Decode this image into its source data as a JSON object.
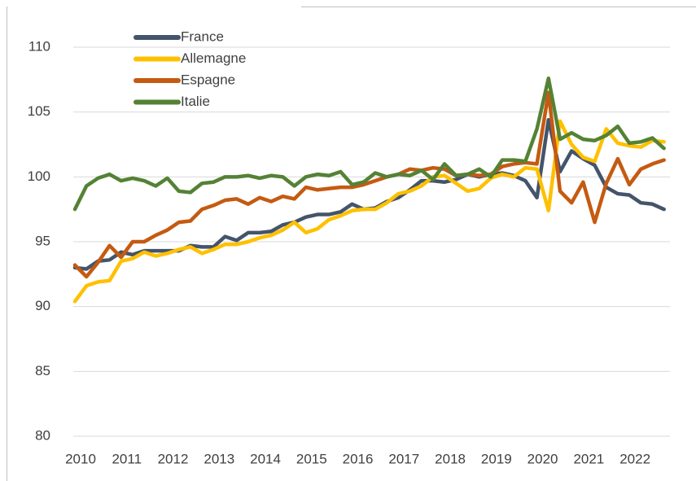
{
  "chart_data": {
    "type": "line",
    "categories": [
      "2010",
      null,
      null,
      null,
      "2011",
      null,
      null,
      null,
      "2012",
      null,
      null,
      null,
      "2013",
      null,
      null,
      null,
      "2014",
      null,
      null,
      null,
      "2015",
      null,
      null,
      null,
      "2016",
      null,
      null,
      null,
      "2017",
      null,
      null,
      null,
      "2018",
      null,
      null,
      null,
      "2019",
      null,
      null,
      null,
      "2020",
      null,
      null,
      null,
      "2021",
      null,
      null,
      null,
      "2022",
      null,
      null,
      null
    ],
    "series": [
      {
        "name": "France",
        "color": "#44546a",
        "values": [
          93,
          92.9,
          93.5,
          93.6,
          94.2,
          94,
          94.3,
          94.3,
          94.3,
          94.3,
          94.7,
          94.6,
          94.6,
          95.4,
          95.1,
          95.7,
          95.7,
          95.8,
          96.3,
          96.5,
          96.9,
          97.1,
          97.1,
          97.3,
          97.9,
          97.5,
          97.6,
          98.1,
          98.4,
          99,
          99.7,
          99.7,
          99.6,
          99.8,
          100.2,
          100,
          100.2,
          100.3,
          100.1,
          99.7,
          98.4,
          104.4,
          100.4,
          102,
          101.4,
          100.9,
          99.2,
          98.7,
          98.6,
          98,
          97.9,
          97.5
        ]
      },
      {
        "name": "Allemagne",
        "color": "#ffc000",
        "values": [
          90.4,
          91.6,
          91.9,
          92,
          93.5,
          93.7,
          94.2,
          93.9,
          94.1,
          94.4,
          94.6,
          94.1,
          94.4,
          94.8,
          94.8,
          95,
          95.3,
          95.5,
          95.9,
          96.5,
          95.7,
          96,
          96.7,
          97,
          97.4,
          97.5,
          97.5,
          98,
          98.7,
          98.9,
          99.3,
          100,
          100.1,
          99.5,
          98.9,
          99.1,
          99.9,
          100.2,
          100,
          100.7,
          100.6,
          97.4,
          104.3,
          102.5,
          101.5,
          101.2,
          103.7,
          102.6,
          102.4,
          102.3,
          102.8,
          102.7
        ]
      },
      {
        "name": "Espagne",
        "color": "#c55a11",
        "values": [
          93.2,
          92.3,
          93.4,
          94.7,
          93.8,
          95,
          95,
          95.5,
          95.9,
          96.5,
          96.6,
          97.5,
          97.8,
          98.2,
          98.3,
          97.9,
          98.4,
          98.1,
          98.5,
          98.3,
          99.2,
          99,
          99.1,
          99.2,
          99.2,
          99.4,
          99.7,
          100,
          100.2,
          100.6,
          100.5,
          100.7,
          100.6,
          100.1,
          100.2,
          100.1,
          100.2,
          100.8,
          101,
          101.1,
          101,
          106.5,
          98.9,
          98,
          99.6,
          96.5,
          99.5,
          101.4,
          99.4,
          100.6,
          101,
          101.3
        ]
      },
      {
        "name": "Italie",
        "color": "#548235",
        "values": [
          97.5,
          99.3,
          99.9,
          100.2,
          99.7,
          99.9,
          99.7,
          99.3,
          99.9,
          98.9,
          98.8,
          99.5,
          99.6,
          100,
          100,
          100.1,
          99.9,
          100.1,
          100,
          99.3,
          100,
          100.2,
          100.1,
          100.4,
          99.4,
          99.6,
          100.3,
          100,
          100.2,
          100.1,
          100.5,
          99.8,
          101,
          100.1,
          100.2,
          100.6,
          100,
          101.3,
          101.3,
          101.2,
          103.7,
          107.6,
          102.9,
          103.4,
          102.9,
          102.8,
          103.2,
          103.9,
          102.6,
          102.7,
          103,
          102.2
        ]
      }
    ],
    "ylim": [
      80,
      110
    ],
    "yticks": [
      80,
      85,
      90,
      95,
      100,
      105,
      110
    ],
    "grid": true,
    "legend": "top-left"
  }
}
